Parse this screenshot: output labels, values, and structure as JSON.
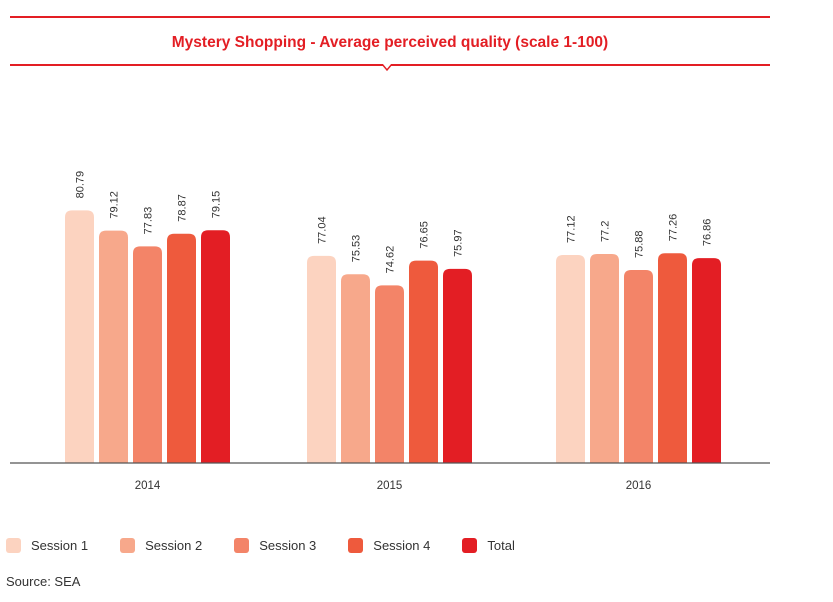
{
  "chart_data": {
    "type": "bar",
    "title": "Mystery Shopping - Average perceived quality (scale 1-100)",
    "categories": [
      "2014",
      "2015",
      "2016"
    ],
    "series": [
      {
        "name": "Session 1",
        "color": "#fcd3c0",
        "values": [
          80.79,
          77.04,
          77.12
        ]
      },
      {
        "name": "Session 2",
        "color": "#f7a88b",
        "values": [
          79.12,
          75.53,
          77.2
        ]
      },
      {
        "name": "Session 3",
        "color": "#f38468",
        "values": [
          77.83,
          74.62,
          75.88
        ]
      },
      {
        "name": "Session 4",
        "color": "#ee5a3d",
        "values": [
          78.87,
          76.65,
          77.26
        ]
      },
      {
        "name": "Total",
        "color": "#e31e24",
        "values": [
          79.15,
          75.97,
          76.86
        ]
      }
    ],
    "value_labels": [
      [
        "80.79",
        "79.12",
        "77.83",
        "78.87",
        "79.15"
      ],
      [
        "77.04",
        "75.53",
        "74.62",
        "76.65",
        "75.97"
      ],
      [
        "77.12",
        "77.2",
        "75.88",
        "77.26",
        "76.86"
      ]
    ],
    "xlabel": "",
    "ylabel": "",
    "ylim": [
      60,
      83.7
    ],
    "grid": false,
    "legend_position": "bottom-left"
  },
  "source": "Source: SEA"
}
